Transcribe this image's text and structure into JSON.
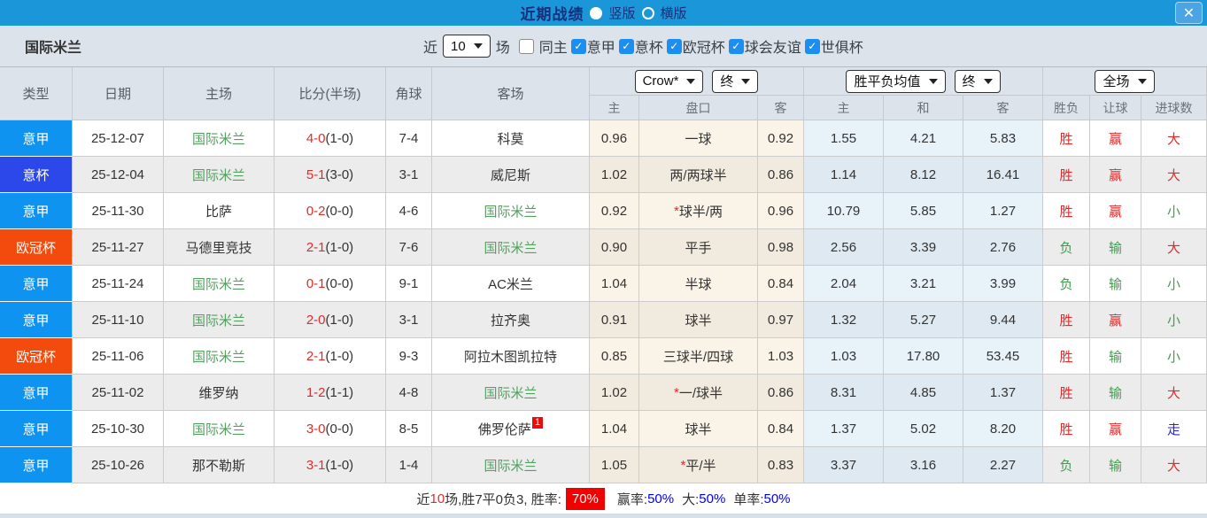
{
  "icons": {
    "check": "✓",
    "close": "✕"
  },
  "titlebar": {
    "title": "近期战绩",
    "vertical_label": "竖版",
    "horizontal_label": "横版"
  },
  "filterbar": {
    "team": "国际米兰",
    "near_label": "近",
    "games_count": "10",
    "games_label": "场",
    "checkboxes": [
      {
        "label": "同主",
        "checked": false
      },
      {
        "label": "意甲",
        "checked": true
      },
      {
        "label": "意杯",
        "checked": true
      },
      {
        "label": "欧冠杯",
        "checked": true
      },
      {
        "label": "球会友谊",
        "checked": true
      },
      {
        "label": "世俱杯",
        "checked": true
      }
    ]
  },
  "table": {
    "dropdowns": {
      "asia_source": "Crow*",
      "asia_time": "终",
      "europe_source": "胜平负均值",
      "europe_time": "终",
      "scope": "全场"
    },
    "left_headers": [
      "类型",
      "日期",
      "主场",
      "比分(半场)",
      "角球",
      "客场"
    ],
    "sub_headers": [
      "主",
      "盘口",
      "客",
      "主",
      "和",
      "客",
      "胜负",
      "让球",
      "进球数"
    ],
    "league_colors": {
      "意甲": "#0f93f0",
      "意杯": "#2c48ea",
      "欧冠杯": "#f34b0e"
    },
    "text_colors": {
      "r": "#e12b2b",
      "g": "#3f9e4c",
      "b": "#2626d9"
    },
    "rows": [
      {
        "league": "意甲",
        "date": "25-12-07",
        "home": "国际米兰",
        "home_is_team": true,
        "score": "4-0",
        "half": "(1-0)",
        "corners": "7-4",
        "away": "科莫",
        "away_is_team": false,
        "away_sup": "",
        "asia_home": "0.96",
        "asia_star": "",
        "asia_line": "一球",
        "asia_away": "0.92",
        "eu_home": "1.55",
        "eu_draw": "4.21",
        "eu_away": "5.83",
        "wl": "胜",
        "wl_c": "r",
        "ah": "赢",
        "ah_c": "r",
        "ou": "大",
        "ou_c": "r"
      },
      {
        "league": "意杯",
        "date": "25-12-04",
        "home": "国际米兰",
        "home_is_team": true,
        "score": "5-1",
        "half": "(3-0)",
        "corners": "3-1",
        "away": "威尼斯",
        "away_is_team": false,
        "away_sup": "",
        "asia_home": "1.02",
        "asia_star": "",
        "asia_line": "两/两球半",
        "asia_away": "0.86",
        "eu_home": "1.14",
        "eu_draw": "8.12",
        "eu_away": "16.41",
        "wl": "胜",
        "wl_c": "r",
        "ah": "赢",
        "ah_c": "r",
        "ou": "大",
        "ou_c": "r"
      },
      {
        "league": "意甲",
        "date": "25-11-30",
        "home": "比萨",
        "home_is_team": false,
        "score": "0-2",
        "half": "(0-0)",
        "corners": "4-6",
        "away": "国际米兰",
        "away_is_team": true,
        "away_sup": "",
        "asia_home": "0.92",
        "asia_star": "*",
        "asia_line": "球半/两",
        "asia_away": "0.96",
        "eu_home": "10.79",
        "eu_draw": "5.85",
        "eu_away": "1.27",
        "wl": "胜",
        "wl_c": "r",
        "ah": "赢",
        "ah_c": "r",
        "ou": "小",
        "ou_c": "g"
      },
      {
        "league": "欧冠杯",
        "date": "25-11-27",
        "home": "马德里竞技",
        "home_is_team": false,
        "score": "2-1",
        "half": "(1-0)",
        "corners": "7-6",
        "away": "国际米兰",
        "away_is_team": true,
        "away_sup": "",
        "asia_home": "0.90",
        "asia_star": "",
        "asia_line": "平手",
        "asia_away": "0.98",
        "eu_home": "2.56",
        "eu_draw": "3.39",
        "eu_away": "2.76",
        "wl": "负",
        "wl_c": "g",
        "ah": "输",
        "ah_c": "g",
        "ou": "大",
        "ou_c": "r"
      },
      {
        "league": "意甲",
        "date": "25-11-24",
        "home": "国际米兰",
        "home_is_team": true,
        "score": "0-1",
        "half": "(0-0)",
        "corners": "9-1",
        "away": "AC米兰",
        "away_is_team": false,
        "away_sup": "",
        "asia_home": "1.04",
        "asia_star": "",
        "asia_line": "半球",
        "asia_away": "0.84",
        "eu_home": "2.04",
        "eu_draw": "3.21",
        "eu_away": "3.99",
        "wl": "负",
        "wl_c": "g",
        "ah": "输",
        "ah_c": "g",
        "ou": "小",
        "ou_c": "g"
      },
      {
        "league": "意甲",
        "date": "25-11-10",
        "home": "国际米兰",
        "home_is_team": true,
        "score": "2-0",
        "half": "(1-0)",
        "corners": "3-1",
        "away": "拉齐奥",
        "away_is_team": false,
        "away_sup": "",
        "asia_home": "0.91",
        "asia_star": "",
        "asia_line": "球半",
        "asia_away": "0.97",
        "eu_home": "1.32",
        "eu_draw": "5.27",
        "eu_away": "9.44",
        "wl": "胜",
        "wl_c": "r",
        "ah": "赢",
        "ah_c": "r",
        "ou": "小",
        "ou_c": "g"
      },
      {
        "league": "欧冠杯",
        "date": "25-11-06",
        "home": "国际米兰",
        "home_is_team": true,
        "score": "2-1",
        "half": "(1-0)",
        "corners": "9-3",
        "away": "阿拉木图凯拉特",
        "away_is_team": false,
        "away_sup": "",
        "asia_home": "0.85",
        "asia_star": "",
        "asia_line": "三球半/四球",
        "asia_away": "1.03",
        "eu_home": "1.03",
        "eu_draw": "17.80",
        "eu_away": "53.45",
        "wl": "胜",
        "wl_c": "r",
        "ah": "输",
        "ah_c": "g",
        "ou": "小",
        "ou_c": "g"
      },
      {
        "league": "意甲",
        "date": "25-11-02",
        "home": "维罗纳",
        "home_is_team": false,
        "score": "1-2",
        "half": "(1-1)",
        "corners": "4-8",
        "away": "国际米兰",
        "away_is_team": true,
        "away_sup": "",
        "asia_home": "1.02",
        "asia_star": "*",
        "asia_line": "一/球半",
        "asia_away": "0.86",
        "eu_home": "8.31",
        "eu_draw": "4.85",
        "eu_away": "1.37",
        "wl": "胜",
        "wl_c": "r",
        "ah": "输",
        "ah_c": "g",
        "ou": "大",
        "ou_c": "r"
      },
      {
        "league": "意甲",
        "date": "25-10-30",
        "home": "国际米兰",
        "home_is_team": true,
        "score": "3-0",
        "half": "(0-0)",
        "corners": "8-5",
        "away": "佛罗伦萨",
        "away_is_team": false,
        "away_sup": "1",
        "asia_home": "1.04",
        "asia_star": "",
        "asia_line": "球半",
        "asia_away": "0.84",
        "eu_home": "1.37",
        "eu_draw": "5.02",
        "eu_away": "8.20",
        "wl": "胜",
        "wl_c": "r",
        "ah": "赢",
        "ah_c": "r",
        "ou": "走",
        "ou_c": "b"
      },
      {
        "league": "意甲",
        "date": "25-10-26",
        "home": "那不勒斯",
        "home_is_team": false,
        "score": "3-1",
        "half": "(1-0)",
        "corners": "1-4",
        "away": "国际米兰",
        "away_is_team": true,
        "away_sup": "",
        "asia_home": "1.05",
        "asia_star": "*",
        "asia_line": "平/半",
        "asia_away": "0.83",
        "eu_home": "3.37",
        "eu_draw": "3.16",
        "eu_away": "2.27",
        "wl": "负",
        "wl_c": "g",
        "ah": "输",
        "ah_c": "g",
        "ou": "大",
        "ou_c": "r"
      }
    ]
  },
  "summary": {
    "prefix": "近",
    "count": "10",
    "middle": "场,胜7平0负3, 胜率:",
    "win_pct": "70%",
    "win_rate_label": "赢率:",
    "win_rate": "50%",
    "big_label": "大:",
    "big_rate": "50%",
    "single_label": "单率:",
    "single_rate": "50%"
  }
}
